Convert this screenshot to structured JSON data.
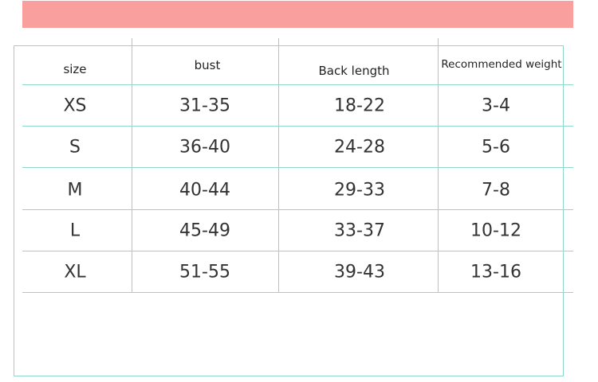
{
  "colors": {
    "banner": "#f9a09f",
    "grid": "#8fd8c8"
  },
  "table": {
    "headers": [
      "size",
      "bust",
      "Back length",
      "Recommended weight"
    ],
    "rows": [
      [
        "XS",
        "31-35",
        "18-22",
        "3-4"
      ],
      [
        "S",
        "36-40",
        "24-28",
        "5-6"
      ],
      [
        "M",
        "40-44",
        "29-33",
        "7-8"
      ],
      [
        "L",
        "45-49",
        "33-37",
        "10-12"
      ],
      [
        "XL",
        "51-55",
        "39-43",
        "13-16"
      ]
    ]
  }
}
